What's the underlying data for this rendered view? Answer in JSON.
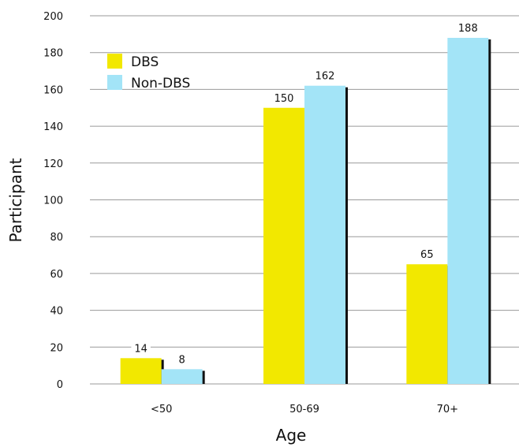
{
  "chart_data": {
    "type": "bar",
    "title": "",
    "xlabel": "Age",
    "ylabel": "Participant",
    "categories": [
      "<50",
      "50-69",
      "70+"
    ],
    "series": [
      {
        "name": "DBS",
        "values": [
          14,
          150,
          65
        ],
        "color": "#f2e800"
      },
      {
        "name": "Non-DBS",
        "values": [
          8,
          162,
          188
        ],
        "color": "#a3e4f7"
      }
    ],
    "value_labels": [
      [
        "14",
        "150",
        "65"
      ],
      [
        "8",
        "162",
        "188"
      ]
    ],
    "ylim": [
      0,
      200
    ],
    "yticks": [
      0,
      20,
      40,
      60,
      80,
      100,
      120,
      140,
      160,
      180,
      200
    ],
    "grid": "horizontal",
    "legend": "top-left"
  }
}
